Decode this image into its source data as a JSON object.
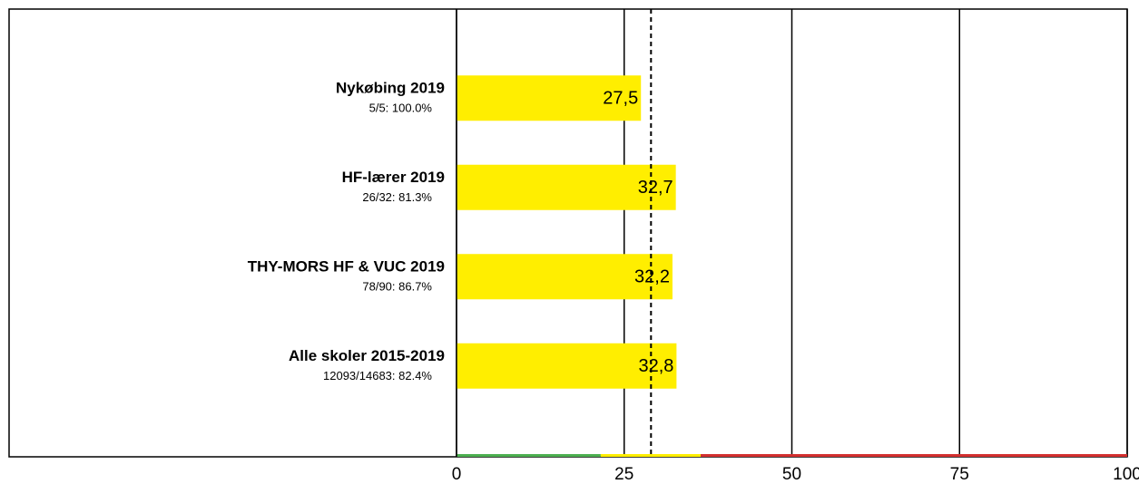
{
  "chart_data": {
    "type": "bar",
    "orientation": "horizontal",
    "categories": [
      "Nykøbing 2019",
      "HF-lærer 2019",
      "THY-MORS HF & VUC 2019",
      "Alle skoler 2015-2019"
    ],
    "subtitles": [
      "5/5: 100.0%",
      "26/32: 81.3%",
      "78/90: 86.7%",
      "12093/14683: 82.4%"
    ],
    "values": [
      27.5,
      32.7,
      32.2,
      32.8
    ],
    "value_labels": [
      "27,5",
      "32,7",
      "32,2",
      "32,8"
    ],
    "color": "#ffee00",
    "xlim": [
      0,
      100
    ],
    "xticks": [
      0,
      25,
      50,
      75,
      100
    ],
    "grid": true,
    "reference": 29,
    "bands": [
      {
        "start": 0,
        "end": 21.5,
        "color": "#4caf50"
      },
      {
        "start": 21.5,
        "end": 36.4,
        "color": "#ffee00"
      },
      {
        "start": 36.4,
        "end": 100,
        "color": "#d32f2f"
      }
    ]
  }
}
